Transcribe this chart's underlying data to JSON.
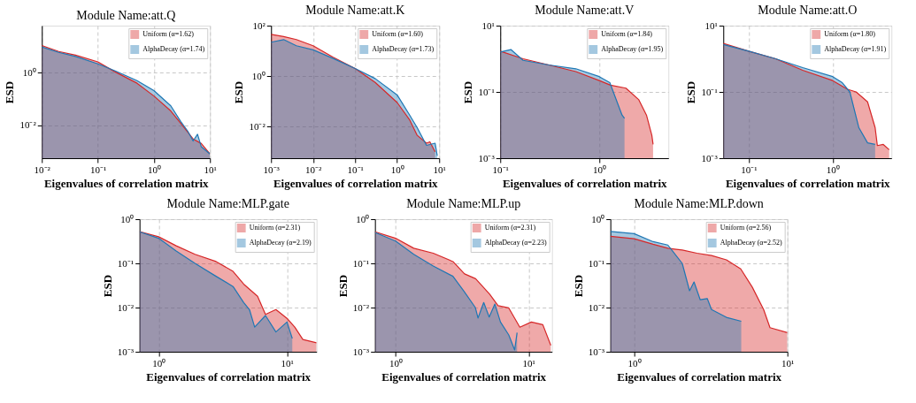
{
  "chart_data": [
    {
      "type": "area",
      "title": "Module Name:att.Q",
      "xlabel": "Eigenvalues of correlation matrix",
      "ylabel": "ESD",
      "log": "xy",
      "grid": true,
      "legend": "top right",
      "xlim": [
        0.01,
        10
      ],
      "ylim": [
        0.00055,
        63
      ],
      "xticks": [
        {
          "value": 0.01,
          "label": "10⁻²"
        },
        {
          "value": 0.1,
          "label": "10⁻¹"
        },
        {
          "value": 1,
          "label": "10⁰"
        },
        {
          "value": 10,
          "label": "10¹"
        }
      ],
      "yticks": [
        {
          "value": 0.01,
          "label": "10⁻²"
        },
        {
          "value": 1,
          "label": "10⁰"
        }
      ],
      "series": [
        {
          "name": "Uniform (α=1.62)",
          "color": "#d62728",
          "x": [
            0.01,
            0.02,
            0.04,
            0.1,
            0.2,
            0.5,
            1,
            2,
            3,
            5,
            7,
            10
          ],
          "values": [
            11,
            6.5,
            4.7,
            2.6,
            1.1,
            0.4,
            0.13,
            0.035,
            0.012,
            0.003,
            0.002,
            0.0008
          ]
        },
        {
          "name": "AlphaDecay (α=1.74)",
          "color": "#1f77b4",
          "x": [
            0.01,
            0.02,
            0.04,
            0.1,
            0.2,
            0.5,
            1,
            2,
            3,
            4,
            5,
            6,
            7,
            10
          ],
          "values": [
            9.7,
            6,
            4.2,
            2.2,
            1.2,
            0.5,
            0.21,
            0.055,
            0.014,
            0.006,
            0.0025,
            0.0045,
            0.0015,
            0.0008
          ]
        }
      ]
    },
    {
      "type": "area",
      "title": "Module Name:att.K",
      "xlabel": "Eigenvalues of correlation matrix",
      "ylabel": "ESD",
      "log": "xy",
      "grid": true,
      "legend": "top right",
      "xlim": [
        0.001,
        10
      ],
      "ylim": [
        0.00056,
        100
      ],
      "xticks": [
        {
          "value": 0.001,
          "label": "10⁻³"
        },
        {
          "value": 0.01,
          "label": "10⁻²"
        },
        {
          "value": 0.1,
          "label": "10⁻¹"
        },
        {
          "value": 1,
          "label": "10⁰"
        },
        {
          "value": 10,
          "label": "10¹"
        }
      ],
      "yticks": [
        {
          "value": 0.01,
          "label": "10⁻²"
        },
        {
          "value": 1,
          "label": "10⁰"
        },
        {
          "value": 100,
          "label": "10²"
        }
      ],
      "series": [
        {
          "name": "Uniform (α=1.60)",
          "color": "#d62728",
          "x": [
            0.001,
            0.002,
            0.004,
            0.01,
            0.03,
            0.1,
            0.3,
            1,
            2,
            3,
            5,
            6,
            8
          ],
          "values": [
            45,
            37,
            28,
            16,
            5.6,
            2.0,
            0.56,
            0.09,
            0.018,
            0.0045,
            0.0022,
            0.0025,
            0.001
          ]
        },
        {
          "name": "AlphaDecay (α=1.73)",
          "color": "#1f77b4",
          "x": [
            0.001,
            0.002,
            0.004,
            0.01,
            0.03,
            0.1,
            0.3,
            1,
            2,
            3,
            5,
            8,
            9
          ],
          "values": [
            22,
            28,
            16,
            11,
            5,
            2.0,
            0.8,
            0.18,
            0.028,
            0.009,
            0.0018,
            0.0022,
            0.0007
          ]
        }
      ]
    },
    {
      "type": "area",
      "title": "Module Name:att.V",
      "xlabel": "Eigenvalues of correlation matrix",
      "ylabel": "ESD",
      "log": "xy",
      "grid": true,
      "legend": "top right",
      "xlim": [
        0.1,
        5
      ],
      "ylim": [
        0.001,
        10
      ],
      "xticks": [
        {
          "value": 0.1,
          "label": "10⁻¹"
        },
        {
          "value": 1,
          "label": "10⁰"
        }
      ],
      "yticks": [
        {
          "value": 0.001,
          "label": "10⁻³"
        },
        {
          "value": 0.1,
          "label": "10⁻¹"
        },
        {
          "value": 10,
          "label": "10¹"
        }
      ],
      "series": [
        {
          "name": "Uniform (α=1.84)",
          "color": "#d62728",
          "x": [
            0.1,
            0.17,
            0.31,
            0.58,
            1,
            1.3,
            1.86,
            2.5,
            3.0,
            3.4,
            3.5
          ],
          "values": [
            1.7,
            1.0,
            0.65,
            0.41,
            0.22,
            0.16,
            0.13,
            0.059,
            0.02,
            0.0049,
            0.0026
          ]
        },
        {
          "name": "AlphaDecay (α=1.95)",
          "color": "#1f77b4",
          "x": [
            0.1,
            0.128,
            0.17,
            0.31,
            0.58,
            1,
            1.28,
            1.45,
            1.7,
            1.8
          ],
          "values": [
            1.6,
            1.9,
            0.9,
            0.65,
            0.5,
            0.29,
            0.19,
            0.07,
            0.02,
            0.016
          ]
        }
      ]
    },
    {
      "type": "area",
      "title": "Module Name:att.O",
      "xlabel": "Eigenvalues of correlation matrix",
      "ylabel": "ESD",
      "log": "xy",
      "grid": true,
      "legend": "top right",
      "xlim": [
        0.05,
        5
      ],
      "ylim": [
        0.001,
        10
      ],
      "xticks": [
        {
          "value": 0.1,
          "label": "10⁻¹"
        },
        {
          "value": 1,
          "label": "10⁰"
        }
      ],
      "yticks": [
        {
          "value": 0.001,
          "label": "10⁻³"
        },
        {
          "value": 0.1,
          "label": "10⁻¹"
        },
        {
          "value": 10,
          "label": "10¹"
        }
      ],
      "series": [
        {
          "name": "Uniform (α=1.80)",
          "color": "#d62728",
          "x": [
            0.05,
            0.1,
            0.21,
            0.44,
            1,
            1.5,
            1.9,
            2.6,
            3.2,
            3.4,
            4.0,
            4.7
          ],
          "values": [
            2.9,
            1.7,
            1.0,
            0.45,
            0.22,
            0.12,
            0.1,
            0.05,
            0.0083,
            0.0024,
            0.0026,
            0.0018
          ]
        },
        {
          "name": "AlphaDecay (α=1.91)",
          "color": "#1f77b4",
          "x": [
            0.05,
            0.1,
            0.21,
            0.44,
            1,
            1.3,
            1.6,
            2.05,
            2.6,
            3.2
          ],
          "values": [
            2.7,
            1.7,
            1.0,
            0.54,
            0.29,
            0.19,
            0.1,
            0.0083,
            0.0029,
            0.0026
          ]
        }
      ]
    },
    {
      "type": "area",
      "title": "Module Name:MLP.gate",
      "xlabel": "Eigenvalues of correlation matrix",
      "ylabel": "ESD",
      "log": "xy",
      "grid": true,
      "legend": "top right",
      "xlim": [
        0.71,
        17
      ],
      "ylim": [
        0.001,
        1
      ],
      "xticks": [
        {
          "value": 1,
          "label": "10⁰"
        },
        {
          "value": 10,
          "label": "10¹"
        }
      ],
      "yticks": [
        {
          "value": 0.001,
          "label": "10⁻³"
        },
        {
          "value": 0.01,
          "label": "10⁻²"
        },
        {
          "value": 0.1,
          "label": "10⁻¹"
        },
        {
          "value": 1,
          "label": "10⁰"
        }
      ],
      "series": [
        {
          "name": "Uniform (α=2.31)",
          "color": "#d62728",
          "x": [
            0.71,
            1,
            1.37,
            1.92,
            2.8,
            3.8,
            4.6,
            5.9,
            6.8,
            8.2,
            10,
            11.5,
            13.3,
            17
          ],
          "values": [
            0.52,
            0.4,
            0.25,
            0.16,
            0.11,
            0.066,
            0.034,
            0.018,
            0.007,
            0.009,
            0.0057,
            0.0036,
            0.0019,
            0.0016
          ]
        },
        {
          "name": "AlphaDecay (α=2.19)",
          "color": "#1f77b4",
          "x": [
            0.71,
            1,
            1.37,
            1.92,
            2.8,
            3.8,
            4.6,
            5.1,
            5.6,
            6.8,
            8.2,
            10,
            11
          ],
          "values": [
            0.52,
            0.37,
            0.19,
            0.1,
            0.051,
            0.03,
            0.013,
            0.009,
            0.0036,
            0.0066,
            0.0028,
            0.0047,
            0.002
          ]
        }
      ]
    },
    {
      "type": "area",
      "title": "Module Name:MLP.up",
      "xlabel": "Eigenvalues of correlation matrix",
      "ylabel": "ESD",
      "log": "xy",
      "grid": true,
      "legend": "top right",
      "xlim": [
        0.7,
        15
      ],
      "ylim": [
        0.001,
        1
      ],
      "xticks": [
        {
          "value": 1,
          "label": "10⁰"
        },
        {
          "value": 10,
          "label": "10¹"
        }
      ],
      "yticks": [
        {
          "value": 0.001,
          "label": "10⁻³"
        },
        {
          "value": 0.01,
          "label": "10⁻²"
        },
        {
          "value": 0.1,
          "label": "10⁻¹"
        },
        {
          "value": 1,
          "label": "10⁰"
        }
      ],
      "series": [
        {
          "name": "Uniform (α=2.31)",
          "color": "#d62728",
          "x": [
            0.7,
            1,
            1.37,
            1.92,
            2.7,
            3.3,
            4.0,
            5.1,
            5.9,
            7.1,
            8.6,
            10.5,
            12.8,
            14.7
          ],
          "values": [
            0.52,
            0.37,
            0.22,
            0.17,
            0.11,
            0.058,
            0.045,
            0.02,
            0.011,
            0.0098,
            0.0036,
            0.0047,
            0.0041,
            0.0014
          ]
        },
        {
          "name": "AlphaDecay (α=2.23)",
          "color": "#1f77b4",
          "x": [
            0.7,
            1,
            1.37,
            1.92,
            2.7,
            3.28,
            3.98,
            4.17,
            4.6,
            5.06,
            5.58,
            6.15,
            7.1,
            7.86,
            8.2
          ],
          "values": [
            0.5,
            0.32,
            0.16,
            0.087,
            0.051,
            0.023,
            0.01,
            0.0058,
            0.013,
            0.0061,
            0.012,
            0.0047,
            0.0024,
            0.0011,
            0.0027
          ]
        }
      ]
    },
    {
      "type": "area",
      "title": "Module Name:MLP.down",
      "xlabel": "Eigenvalues of correlation matrix",
      "ylabel": "ESD",
      "log": "xy",
      "grid": true,
      "legend": "top right",
      "xlim": [
        0.7,
        10
      ],
      "ylim": [
        0.001,
        1
      ],
      "xticks": [
        {
          "value": 1,
          "label": "10⁰"
        },
        {
          "value": 10,
          "label": "10¹"
        }
      ],
      "yticks": [
        {
          "value": 0.001,
          "label": "10⁻³"
        },
        {
          "value": 0.01,
          "label": "10⁻²"
        },
        {
          "value": 0.1,
          "label": "10⁻¹"
        },
        {
          "value": 1,
          "label": "10⁰"
        }
      ],
      "series": [
        {
          "name": "Uniform (α=2.56)",
          "color": "#d62728",
          "x": [
            0.7,
            1,
            1.33,
            1.66,
            2.06,
            2.57,
            3.2,
            4.0,
            4.96,
            5.9,
            7.0,
            7.7,
            10
          ],
          "values": [
            0.41,
            0.36,
            0.27,
            0.22,
            0.2,
            0.17,
            0.15,
            0.12,
            0.075,
            0.029,
            0.009,
            0.0035,
            0.0027
          ]
        },
        {
          "name": "AlphaDecay (α=2.52)",
          "color": "#1f77b4",
          "x": [
            0.7,
            1,
            1.33,
            1.66,
            2.06,
            2.3,
            2.46,
            2.7,
            3.0,
            3.2,
            4.0,
            5.0
          ],
          "values": [
            0.53,
            0.47,
            0.31,
            0.26,
            0.1,
            0.024,
            0.038,
            0.015,
            0.016,
            0.009,
            0.006,
            0.0049
          ]
        }
      ]
    }
  ]
}
